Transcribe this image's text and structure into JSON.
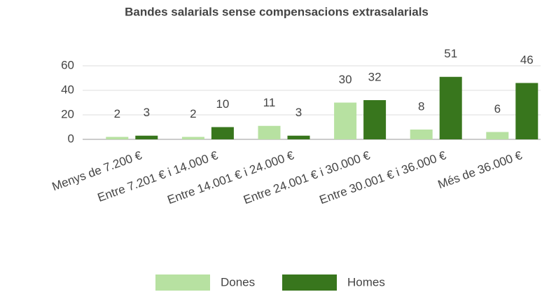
{
  "chart_data": {
    "type": "bar",
    "title": "Bandes salarials sense compensacions extrasalarials",
    "categories": [
      "Menys de 7.200 €",
      "Entre 7.201 € i 14.000 €",
      "Entre 14.001 € i 24.000 €",
      "Entre 24.001 € i 30.000 €",
      "Entre 30.001 € i 36.000 €",
      "Més de 36.000 €"
    ],
    "series": [
      {
        "name": "Dones",
        "color": "#b7e1a1",
        "values": [
          2,
          2,
          11,
          30,
          8,
          6
        ]
      },
      {
        "name": "Homes",
        "color": "#38761d",
        "values": [
          3,
          10,
          3,
          32,
          51,
          46
        ]
      }
    ],
    "ylim": [
      0,
      60
    ],
    "yticks": [
      0,
      20,
      40,
      60
    ],
    "grid": true,
    "legend": "bottom"
  }
}
